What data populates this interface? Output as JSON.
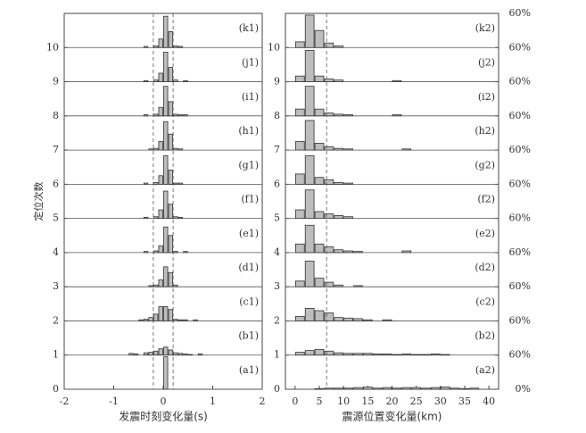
{
  "chart_data": [
    {
      "type": "histogram",
      "xlabel": "发震时刻变化量(s)",
      "ylabel": "定位次数",
      "xlim": [
        -2,
        2
      ],
      "xticks": [
        -2,
        -1,
        0,
        1,
        2
      ],
      "ylim": [
        0,
        11
      ],
      "yticks": [
        0,
        1,
        2,
        3,
        4,
        5,
        6,
        7,
        8,
        9,
        10
      ],
      "y2lim": [
        0,
        60
      ],
      "ref_lines": [
        -0.2,
        0.2
      ],
      "color": "#bdbdbd",
      "bins": [
        -1.0,
        -0.9,
        -0.8,
        -0.7,
        -0.6,
        -0.5,
        -0.4,
        -0.3,
        -0.2,
        -0.1,
        0,
        0.1,
        0.2,
        0.3,
        0.4,
        0.5,
        0.6,
        0.7,
        0.8,
        0.9,
        1.0
      ],
      "series": [
        {
          "name": "(a1)",
          "values": [
            0,
            0,
            0,
            0,
            0,
            0,
            0,
            0,
            0,
            0,
            57,
            0,
            0,
            0,
            0,
            0,
            0,
            0,
            0,
            0
          ]
        },
        {
          "name": "(b1)",
          "values": [
            0,
            0,
            0,
            3,
            2,
            0,
            4,
            5,
            7,
            11,
            14,
            9,
            4,
            3,
            2,
            1,
            0,
            2,
            0,
            0
          ]
        },
        {
          "name": "(c1)",
          "values": [
            0,
            0,
            0,
            0,
            0,
            2,
            3,
            6,
            12,
            25,
            25,
            20,
            3,
            2,
            2,
            0,
            2,
            0,
            0,
            0
          ]
        },
        {
          "name": "(d1)",
          "values": [
            0,
            0,
            0,
            0,
            0,
            0,
            0,
            2,
            3,
            12,
            35,
            25,
            3,
            0,
            0,
            0,
            0,
            0,
            0,
            0
          ]
        },
        {
          "name": "(e1)",
          "values": [
            0,
            0,
            0,
            0,
            0,
            0,
            2,
            0,
            3,
            12,
            45,
            30,
            2,
            0,
            2,
            0,
            0,
            0,
            0,
            0
          ]
        },
        {
          "name": "(f1)",
          "values": [
            0,
            0,
            0,
            0,
            0,
            0,
            2,
            0,
            3,
            15,
            48,
            25,
            3,
            2,
            0,
            0,
            0,
            0,
            0,
            0
          ]
        },
        {
          "name": "(g1)",
          "values": [
            0,
            0,
            0,
            0,
            0,
            0,
            2,
            0,
            3,
            15,
            50,
            25,
            2,
            2,
            0,
            0,
            0,
            0,
            0,
            0
          ]
        },
        {
          "name": "(h1)",
          "values": [
            0,
            0,
            0,
            0,
            0,
            0,
            0,
            2,
            3,
            15,
            50,
            28,
            3,
            2,
            0,
            0,
            0,
            0,
            0,
            0
          ]
        },
        {
          "name": "(i1)",
          "values": [
            0,
            0,
            0,
            0,
            0,
            0,
            2,
            0,
            3,
            15,
            52,
            25,
            3,
            2,
            2,
            0,
            0,
            0,
            0,
            0
          ]
        },
        {
          "name": "(j1)",
          "values": [
            0,
            0,
            0,
            0,
            0,
            0,
            2,
            0,
            3,
            15,
            52,
            25,
            3,
            0,
            2,
            0,
            0,
            0,
            0,
            0
          ]
        },
        {
          "name": "(k1)",
          "values": [
            0,
            0,
            0,
            0,
            0,
            0,
            2,
            0,
            3,
            15,
            55,
            28,
            3,
            2,
            0,
            0,
            0,
            0,
            0,
            0
          ]
        }
      ]
    },
    {
      "type": "histogram",
      "xlabel": "震源位置变化量(km)",
      "xlim": [
        -2,
        42
      ],
      "xticks": [
        0,
        5,
        10,
        15,
        20,
        25,
        30,
        35,
        40
      ],
      "ylim": [
        0,
        11
      ],
      "yticks": [
        0,
        1,
        2,
        3,
        4,
        5,
        6,
        7,
        8,
        9,
        10
      ],
      "y2lim": [
        0,
        60
      ],
      "y2ticks": [
        {
          "value": 0,
          "label": "0%"
        },
        {
          "value": 60,
          "label": "60%"
        }
      ],
      "ref_lines": [
        6.5
      ],
      "color": "#bdbdbd",
      "bins": [
        0,
        2,
        4,
        6,
        8,
        10,
        12,
        14,
        16,
        18,
        20,
        22,
        24,
        26,
        28,
        30,
        32,
        34,
        36,
        38,
        40
      ],
      "series": [
        {
          "name": "(a2)",
          "values": [
            0,
            0,
            1,
            2,
            2,
            2,
            3,
            4,
            2,
            3,
            2,
            3,
            3,
            2,
            3,
            4,
            2,
            1,
            2,
            0
          ]
        },
        {
          "name": "(b2)",
          "values": [
            5,
            8,
            10,
            7,
            4,
            3,
            3,
            3,
            2,
            2,
            1,
            2,
            1,
            1,
            2,
            1,
            0,
            0,
            0,
            0
          ]
        },
        {
          "name": "(c2)",
          "values": [
            8,
            22,
            18,
            14,
            6,
            5,
            4,
            2,
            0,
            2,
            0,
            0,
            0,
            0,
            0,
            0,
            0,
            0,
            0,
            0
          ]
        },
        {
          "name": "(d2)",
          "values": [
            10,
            45,
            15,
            8,
            3,
            0,
            2,
            0,
            0,
            0,
            0,
            0,
            0,
            0,
            0,
            0,
            0,
            0,
            0,
            0
          ]
        },
        {
          "name": "(e2)",
          "values": [
            15,
            48,
            15,
            10,
            5,
            3,
            2,
            0,
            0,
            0,
            0,
            3,
            0,
            0,
            0,
            0,
            0,
            0,
            0,
            0
          ]
        },
        {
          "name": "(f2)",
          "values": [
            15,
            50,
            12,
            8,
            5,
            3,
            0,
            0,
            0,
            0,
            0,
            0,
            0,
            0,
            0,
            0,
            0,
            0,
            0,
            0
          ]
        },
        {
          "name": "(g2)",
          "values": [
            18,
            50,
            12,
            8,
            3,
            2,
            0,
            0,
            0,
            0,
            0,
            0,
            0,
            0,
            0,
            0,
            0,
            0,
            0,
            0
          ]
        },
        {
          "name": "(h2)",
          "values": [
            15,
            52,
            12,
            6,
            3,
            2,
            0,
            0,
            0,
            0,
            0,
            2,
            0,
            0,
            0,
            0,
            0,
            0,
            0,
            0
          ]
        },
        {
          "name": "(i2)",
          "values": [
            12,
            52,
            12,
            5,
            3,
            2,
            0,
            0,
            0,
            0,
            2,
            0,
            0,
            0,
            0,
            0,
            0,
            0,
            0,
            0
          ]
        },
        {
          "name": "(j2)",
          "values": [
            10,
            55,
            10,
            5,
            3,
            0,
            0,
            0,
            0,
            0,
            2,
            0,
            0,
            0,
            0,
            0,
            0,
            0,
            0,
            0
          ]
        },
        {
          "name": "(k2)",
          "values": [
            10,
            57,
            30,
            8,
            3,
            0,
            0,
            0,
            0,
            0,
            0,
            0,
            0,
            0,
            0,
            0,
            0,
            0,
            0,
            0
          ]
        }
      ]
    }
  ]
}
